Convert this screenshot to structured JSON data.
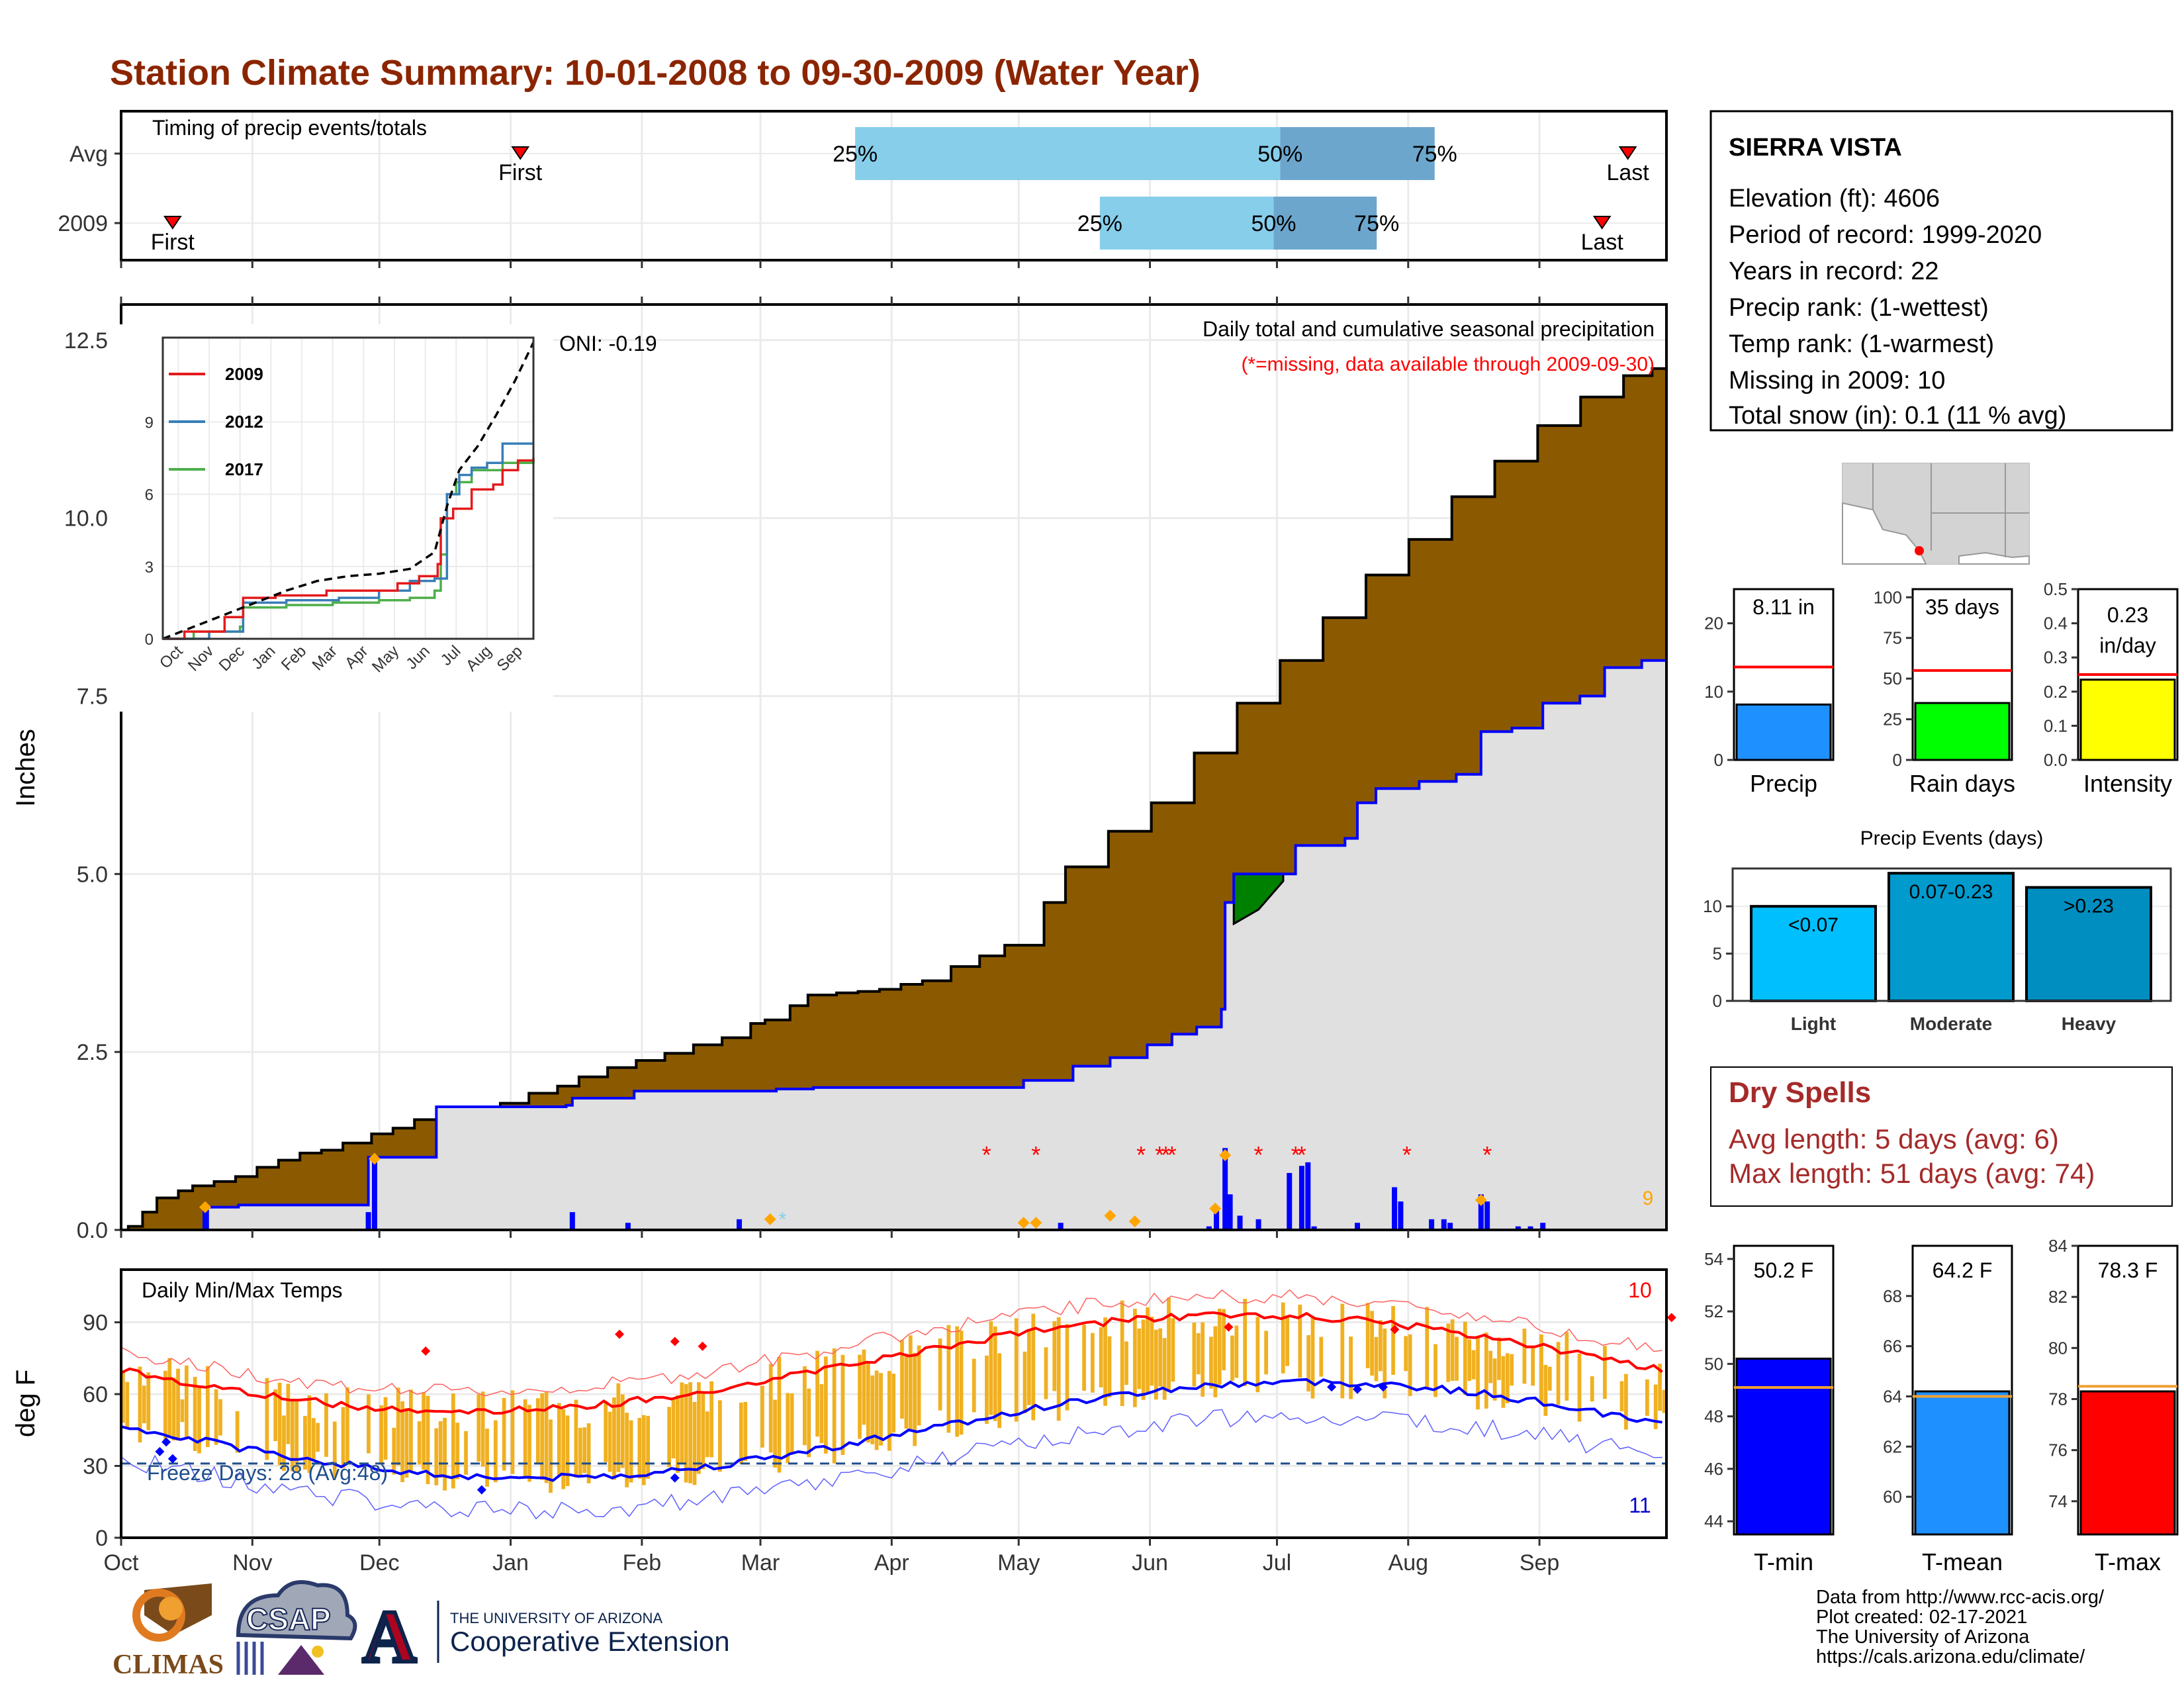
{
  "page": {
    "title": "Station Climate Summary: 10-01-2008 to 09-30-2009 (Water Year)",
    "title_color": "#8B2500"
  },
  "timing_panel": {
    "label": "Timing of precip events/totals",
    "rows": [
      {
        "row_label": "Avg",
        "first_label": "First",
        "last_label": "Last",
        "first_month": 3.1,
        "last_month": 11.7,
        "q25": 5.7,
        "q50": 9.0,
        "q75": 10.2,
        "q25_label": "25%",
        "q50_label": "50%",
        "q75_label": "75%"
      },
      {
        "row_label": "2009",
        "first_label": "First",
        "last_label": "Last",
        "first_month": 0.4,
        "last_month": 11.5,
        "q25": 7.6,
        "q50": 8.95,
        "q75": 9.75,
        "q25_label": "25%",
        "q50_label": "50%",
        "q75_label": "75%"
      }
    ]
  },
  "precip_panel": {
    "ylabel": "Inches",
    "y_ticks": [
      "0.0",
      "2.5",
      "5.0",
      "7.5",
      "10.0",
      "12.5"
    ],
    "ylim": [
      0,
      13
    ],
    "caption": "Daily total and cumulative seasonal precipitation",
    "missing_note": "(*=missing, data available through 2009-09-30)",
    "oni_label": "ONI: -0.19",
    "missing_count": "9",
    "missing_color": "#FF0000",
    "count_color": "#FFA500"
  },
  "inset": {
    "x_ticks": [
      "Oct",
      "Nov",
      "Dec",
      "Jan",
      "Feb",
      "Mar",
      "Apr",
      "May",
      "Jun",
      "Jul",
      "Aug",
      "Sep"
    ],
    "y_ticks": [
      "0",
      "3",
      "6",
      "9"
    ],
    "ylim": [
      0,
      12.5
    ],
    "legend": [
      {
        "name": "2009",
        "color": "#E41A1C"
      },
      {
        "name": "2012",
        "color": "#377EB8"
      },
      {
        "name": "2017",
        "color": "#4DAF4A"
      }
    ]
  },
  "temp_panel": {
    "ylabel": "deg F",
    "label": "Daily Min/Max Temps",
    "y_ticks": [
      "0",
      "30",
      "60",
      "90"
    ],
    "ylim": [
      0,
      112
    ],
    "freeze_label": "Freeze Days: 28 (Avg:48)",
    "record_high_count": "10",
    "record_low_count": "11"
  },
  "x_axis": {
    "months": [
      "Oct",
      "Nov",
      "Dec",
      "Jan",
      "Feb",
      "Mar",
      "Apr",
      "May",
      "Jun",
      "Jul",
      "Aug",
      "Sep"
    ]
  },
  "station": {
    "name": "SIERRA VISTA",
    "lines": [
      "Elevation (ft): 4606",
      "Period of record: 1999-2020",
      "Years in record: 22",
      "Precip rank:  (1-wettest)",
      "Temp rank:  (1-warmest)",
      "Missing in 2009: 10",
      "Total snow (in): 0.1 (11 % avg)"
    ]
  },
  "summary_bars": [
    {
      "label": "Precip",
      "value_label": "8.11 in",
      "value": 8.11,
      "avg": 13.6,
      "ylim": [
        0,
        25
      ],
      "ticks": [
        "0",
        "10",
        "20"
      ],
      "tick_values": [
        0,
        10,
        20
      ],
      "color": "#1E90FF"
    },
    {
      "label": "Rain days",
      "value_label": "35 days",
      "value": 35,
      "avg": 55,
      "ylim": [
        0,
        105
      ],
      "ticks": [
        "0",
        "25",
        "50",
        "75",
        "100"
      ],
      "tick_values": [
        0,
        25,
        50,
        75,
        100
      ],
      "color": "#00FF00"
    },
    {
      "label": "Intensity",
      "value_label_lines": [
        "0.23",
        "in/day"
      ],
      "value": 0.235,
      "avg": 0.25,
      "ylim": [
        0,
        0.5
      ],
      "ticks": [
        "0.0",
        "0.1",
        "0.2",
        "0.3",
        "0.4",
        "0.5"
      ],
      "tick_values": [
        0,
        0.1,
        0.2,
        0.3,
        0.4,
        0.5
      ],
      "color": "#FFFF00"
    }
  ],
  "precip_events": {
    "title": "Precip Events (days)",
    "ylim": [
      0,
      14
    ],
    "ticks": [
      "0",
      "5",
      "10"
    ],
    "categories": [
      "Light",
      "Moderate",
      "Heavy"
    ],
    "range_labels": [
      "<0.07",
      "0.07-0.23",
      ">0.23"
    ],
    "values": [
      10,
      13.5,
      12
    ],
    "colors": [
      "#00BFFF",
      "#009ACD",
      "#008EC0"
    ]
  },
  "dry_spells": {
    "title": "Dry Spells",
    "lines": [
      "Avg length: 5 days (avg: 6)",
      "Max length: 51 days (avg: 74)"
    ],
    "color": "#A52A2A"
  },
  "temp_bars": [
    {
      "label": "T-min",
      "value_label": "50.2 F",
      "value": 50.2,
      "avg": 49.1,
      "ylim": [
        43.5,
        54.5
      ],
      "ticks": [
        "44",
        "46",
        "48",
        "50",
        "52",
        "54"
      ],
      "tick_values": [
        44,
        46,
        48,
        50,
        52,
        54
      ],
      "color": "#0000FF"
    },
    {
      "label": "T-mean",
      "value_label": "64.2 F",
      "value": 64.2,
      "avg": 64.0,
      "ylim": [
        58.5,
        70
      ],
      "ticks": [
        "60",
        "62",
        "64",
        "66",
        "68"
      ],
      "tick_values": [
        60,
        62,
        64,
        66,
        68
      ],
      "color": "#1E90FF"
    },
    {
      "label": "T-max",
      "value_label": "78.3 F",
      "value": 78.3,
      "avg": 78.5,
      "ylim": [
        72.7,
        84
      ],
      "ticks": [
        "74",
        "76",
        "78",
        "80",
        "82",
        "84"
      ],
      "tick_values": [
        74,
        76,
        78,
        80,
        82,
        84
      ],
      "color": "#FF0000"
    }
  ],
  "credits": {
    "lines": [
      "Data from http://www.rcc-acis.org/",
      "Plot created: 02-17-2021",
      "The University of Arizona",
      "https://cals.arizona.edu/climate/"
    ]
  },
  "logos": {
    "climas": "CLIMAS",
    "csap": "CSAP",
    "ua_line1": "THE UNIVERSITY OF ARIZONA",
    "ua_line2": "Cooperative Extension",
    "ua_letter": "A"
  },
  "chart_data": {
    "type": "area",
    "title": "Station Climate Summary: 10-01-2008 to 09-30-2009 (Water Year)",
    "ylabel": "Inches",
    "ylim": [
      0,
      13
    ],
    "months": [
      "Oct",
      "Nov",
      "Dec",
      "Jan",
      "Feb",
      "Mar",
      "Apr",
      "May",
      "Jun",
      "Jul",
      "Aug",
      "Sep"
    ],
    "avg_cumulative": [
      [
        0,
        0
      ],
      [
        0.1,
        0.05
      ],
      [
        0.3,
        0.25
      ],
      [
        0.5,
        0.45
      ],
      [
        0.8,
        0.55
      ],
      [
        1.0,
        0.62
      ],
      [
        1.3,
        0.68
      ],
      [
        1.6,
        0.75
      ],
      [
        1.9,
        0.88
      ],
      [
        2.2,
        0.98
      ],
      [
        2.5,
        1.08
      ],
      [
        2.8,
        1.12
      ],
      [
        3.1,
        1.22
      ],
      [
        3.5,
        1.35
      ],
      [
        3.8,
        1.43
      ],
      [
        4.1,
        1.55
      ],
      [
        4.5,
        1.62
      ],
      [
        4.9,
        1.7
      ],
      [
        5.3,
        1.78
      ],
      [
        5.7,
        1.92
      ],
      [
        6.1,
        2.02
      ],
      [
        6.4,
        2.15
      ],
      [
        6.8,
        2.28
      ],
      [
        7.2,
        2.38
      ],
      [
        7.6,
        2.48
      ],
      [
        8.0,
        2.6
      ],
      [
        8.4,
        2.7
      ],
      [
        8.8,
        2.9
      ],
      [
        9.0,
        2.95
      ],
      [
        9.35,
        3.15
      ],
      [
        9.6,
        3.3
      ],
      [
        10.0,
        3.33
      ],
      [
        10.3,
        3.35
      ],
      [
        10.6,
        3.38
      ],
      [
        10.9,
        3.45
      ],
      [
        11.2,
        3.5
      ],
      [
        11.6,
        3.7
      ],
      [
        12.0,
        3.85
      ],
      [
        12.35,
        4.0
      ],
      [
        12.9,
        4.6
      ],
      [
        13.2,
        5.1
      ],
      [
        13.8,
        5.6
      ],
      [
        14.4,
        6.0
      ],
      [
        15.0,
        6.7
      ],
      [
        15.6,
        7.4
      ],
      [
        16.2,
        8.0
      ],
      [
        16.8,
        8.6
      ],
      [
        17.4,
        9.2
      ],
      [
        18.0,
        9.7
      ],
      [
        18.6,
        10.3
      ],
      [
        19.2,
        10.8
      ],
      [
        19.8,
        11.3
      ],
      [
        20.4,
        11.7
      ],
      [
        21.0,
        12.0
      ],
      [
        21.4,
        12.1
      ],
      [
        21.6,
        12.15
      ]
    ],
    "cumulative_2009": [
      [
        0,
        0
      ],
      [
        0.65,
        0.0
      ],
      [
        0.7,
        0.32
      ],
      [
        0.95,
        0.35
      ],
      [
        1.0,
        0.35
      ],
      [
        2.0,
        0.38
      ],
      [
        2.0,
        1.02
      ],
      [
        2.5,
        1.02
      ],
      [
        2.55,
        1.73
      ],
      [
        3.6,
        1.75
      ],
      [
        3.65,
        1.85
      ],
      [
        4.1,
        1.85
      ],
      [
        4.15,
        1.95
      ],
      [
        5.3,
        1.98
      ],
      [
        5.6,
        2.0
      ],
      [
        6.5,
        2.0
      ],
      [
        7.3,
        2.1
      ],
      [
        7.6,
        2.1
      ],
      [
        7.7,
        2.3
      ],
      [
        8.0,
        2.42
      ],
      [
        8.3,
        2.6
      ],
      [
        8.5,
        2.75
      ],
      [
        8.7,
        2.85
      ],
      [
        8.9,
        3.1
      ],
      [
        8.93,
        4.6
      ],
      [
        9.0,
        5.0
      ],
      [
        9.4,
        5.0
      ],
      [
        9.5,
        5.4
      ],
      [
        9.9,
        5.5
      ],
      [
        10.0,
        6.0
      ],
      [
        10.15,
        6.2
      ],
      [
        10.5,
        6.3
      ],
      [
        10.8,
        6.4
      ],
      [
        11.0,
        7.0
      ],
      [
        11.25,
        7.05
      ],
      [
        11.5,
        7.4
      ],
      [
        11.8,
        7.5
      ],
      [
        12.0,
        7.9
      ],
      [
        12.3,
        8.0
      ],
      [
        12.5,
        8.11
      ]
    ],
    "daily_precip": [
      [
        0.68,
        0.32
      ],
      [
        2.0,
        0.25
      ],
      [
        2.05,
        1.0
      ],
      [
        3.65,
        0.25
      ],
      [
        4.1,
        0.1
      ],
      [
        5.0,
        0.15
      ],
      [
        7.6,
        0.1
      ],
      [
        8.8,
        0.05
      ],
      [
        8.86,
        0.3
      ],
      [
        8.93,
        1.15
      ],
      [
        8.97,
        0.5
      ],
      [
        9.05,
        0.2
      ],
      [
        9.2,
        0.15
      ],
      [
        9.45,
        0.8
      ],
      [
        9.55,
        0.9
      ],
      [
        9.6,
        0.95
      ],
      [
        9.65,
        0.05
      ],
      [
        10.0,
        0.1
      ],
      [
        10.3,
        0.6
      ],
      [
        10.35,
        0.4
      ],
      [
        10.6,
        0.15
      ],
      [
        10.7,
        0.15
      ],
      [
        10.75,
        0.1
      ],
      [
        11.0,
        0.5
      ],
      [
        11.05,
        0.4
      ],
      [
        11.3,
        0.05
      ],
      [
        11.4,
        0.05
      ],
      [
        11.5,
        0.1
      ]
    ],
    "missing_days": [
      7.0,
      7.4,
      8.25,
      8.4,
      8.45,
      8.5,
      9.2,
      9.5,
      9.55,
      10.4,
      11.05
    ],
    "temp_ylim": [
      0,
      112
    ],
    "freeze_line": 31
  }
}
